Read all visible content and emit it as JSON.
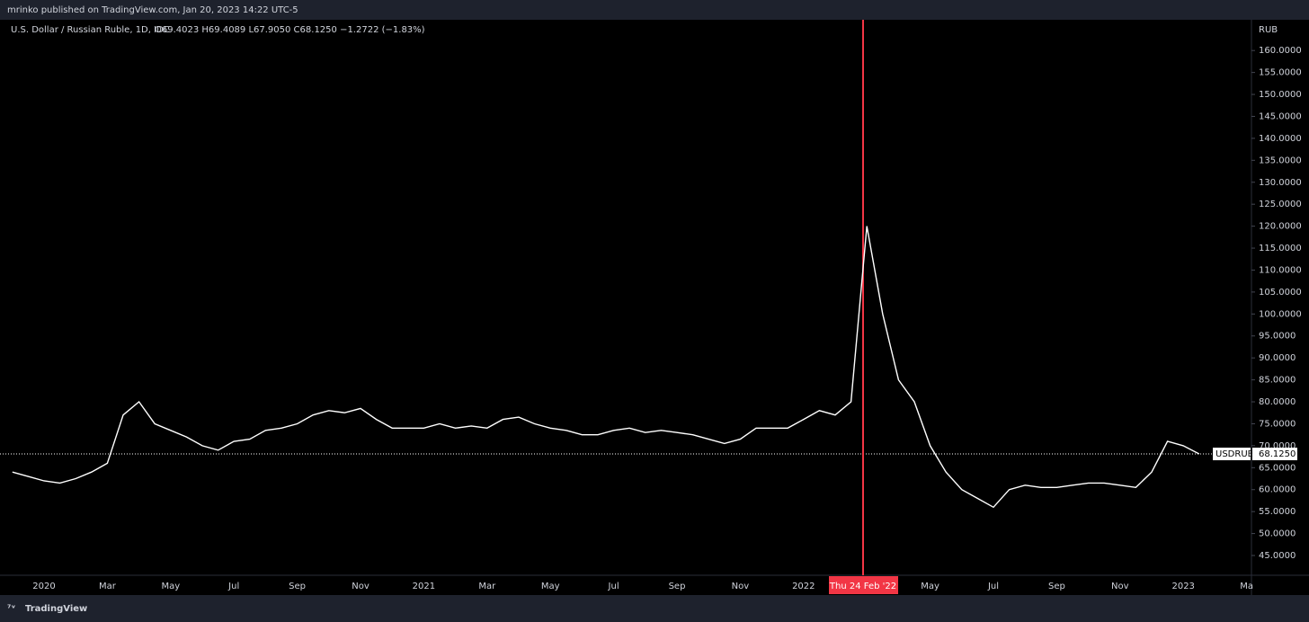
{
  "header": {
    "published": "mrinko published on TradingView.com, Jan 20, 2023 14:22 UTC-5"
  },
  "footer": {
    "brand": "TradingView"
  },
  "chart_data": {
    "type": "line",
    "title": "U.S. Dollar / Russian Ruble, 1D, IDC",
    "ohlc_legend": "O69.4023 H69.4089 L67.9050 C68.1250 −1.2722 (−1.83%)",
    "y_unit": "RUB",
    "color": "#ffffff",
    "categories": [
      null,
      null,
      "2020",
      null,
      null,
      null,
      "Mar",
      null,
      null,
      null,
      "May",
      null,
      null,
      null,
      "Jul",
      null,
      null,
      null,
      "Sep",
      null,
      null,
      null,
      "Nov",
      null,
      null,
      null,
      "2021",
      null,
      null,
      null,
      "Mar",
      null,
      null,
      null,
      "May",
      null,
      null,
      null,
      "Jul",
      null,
      null,
      null,
      "Sep",
      null,
      null,
      null,
      "Nov",
      null,
      null,
      null,
      "2022",
      null,
      null,
      null,
      null,
      null,
      null,
      null,
      "May",
      null,
      null,
      null,
      "Jul",
      null,
      null,
      null,
      "Sep",
      null,
      null,
      null,
      "Nov",
      null,
      null,
      null,
      "2023",
      null,
      null,
      null,
      "Ma"
    ],
    "values": [
      64,
      63,
      62,
      61.5,
      62.5,
      64,
      66,
      77,
      80,
      75,
      73.5,
      72,
      70,
      69,
      71,
      71.5,
      73.5,
      74,
      75,
      77,
      78,
      77.5,
      78.5,
      76,
      74,
      74,
      74,
      75,
      74,
      74.5,
      74,
      76,
      76.5,
      75,
      74,
      73.5,
      72.5,
      72.5,
      73.5,
      74,
      73,
      73.5,
      73,
      72.5,
      71.5,
      70.5,
      71.5,
      74,
      74,
      74,
      76,
      78,
      77,
      80,
      120,
      100,
      85,
      80,
      70,
      64,
      60,
      58,
      56,
      60,
      61,
      60.5,
      60.5,
      61,
      61.5,
      61.5,
      61,
      60.5,
      64,
      71,
      70,
      68.125,
      null,
      null,
      null
    ],
    "event_marker": {
      "label": "Thu 24 Feb '22",
      "color": "#f23645"
    },
    "last_price": {
      "symbol": "USDRUB",
      "value": 68.125,
      "label": "68.1250"
    },
    "ylim": [
      40.5,
      167
    ],
    "yticks": [
      {
        "value": 45,
        "label": "45.0000"
      },
      {
        "value": 50,
        "label": "50.0000"
      },
      {
        "value": 55,
        "label": "55.0000"
      },
      {
        "value": 60,
        "label": "60.0000"
      },
      {
        "value": 65,
        "label": "65.0000"
      },
      {
        "value": 70,
        "label": "70.0000"
      },
      {
        "value": 75,
        "label": "75.0000"
      },
      {
        "value": 80,
        "label": "80.0000"
      },
      {
        "value": 85,
        "label": "85.0000"
      },
      {
        "value": 90,
        "label": "90.0000"
      },
      {
        "value": 95,
        "label": "95.0000"
      },
      {
        "value": 100,
        "label": "100.0000"
      },
      {
        "value": 105,
        "label": "105.0000"
      },
      {
        "value": 110,
        "label": "110.0000"
      },
      {
        "value": 115,
        "label": "115.0000"
      },
      {
        "value": 120,
        "label": "120.0000"
      },
      {
        "value": 125,
        "label": "125.0000"
      },
      {
        "value": 130,
        "label": "130.0000"
      },
      {
        "value": 135,
        "label": "135.0000"
      },
      {
        "value": 140,
        "label": "140.0000"
      },
      {
        "value": 145,
        "label": "145.0000"
      },
      {
        "value": 150,
        "label": "150.0000"
      },
      {
        "value": 155,
        "label": "155.0000"
      },
      {
        "value": 160,
        "label": "160.0000"
      }
    ],
    "grid": false
  }
}
